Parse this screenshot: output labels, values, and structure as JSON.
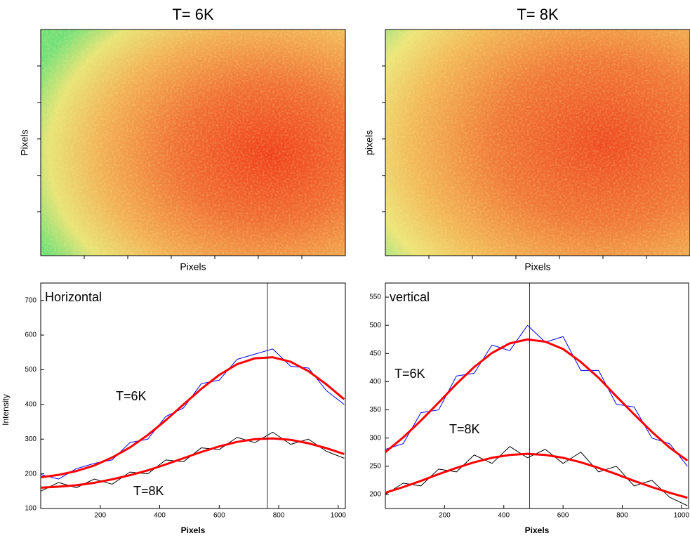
{
  "chart_data": [
    {
      "type": "heatmap",
      "title": "T= 6K",
      "xlabel": "Pixels",
      "ylabel": "Pixels"
    },
    {
      "type": "heatmap",
      "title": "T= 8K",
      "xlabel": "Pixels",
      "ylabel": "pixels"
    },
    {
      "type": "line",
      "annotation": "Horizontal",
      "xlabel": "Pixels",
      "ylabel": "Intensity",
      "x": [
        0,
        60,
        120,
        180,
        240,
        300,
        360,
        420,
        480,
        540,
        600,
        660,
        720,
        780,
        840,
        900,
        960,
        1020
      ],
      "xlim": [
        0,
        1024
      ],
      "xticks": [
        200,
        400,
        600,
        800,
        1000
      ],
      "ylim": [
        100,
        750
      ],
      "yticks": [
        100,
        200,
        300,
        400,
        500,
        600,
        700
      ],
      "vline": 762,
      "series": [
        {
          "name": "T=6K",
          "color": "#0000ff",
          "values": [
            198,
            185,
            215,
            230,
            240,
            290,
            300,
            365,
            390,
            460,
            470,
            530,
            545,
            560,
            510,
            505,
            440,
            400
          ]
        },
        {
          "color": "#ff0000",
          "values": [
            190,
            197,
            208,
            224,
            247,
            276,
            312,
            354,
            400,
            445,
            485,
            516,
            533,
            536,
            523,
            496,
            458,
            415
          ]
        },
        {
          "name": "T=8K",
          "color": "#000000",
          "values": [
            150,
            175,
            160,
            185,
            170,
            205,
            200,
            240,
            235,
            275,
            270,
            305,
            290,
            320,
            285,
            300,
            265,
            245
          ]
        },
        {
          "color": "#ff0000",
          "values": [
            160,
            163,
            167,
            174,
            184,
            196,
            210,
            227,
            245,
            263,
            279,
            292,
            300,
            302,
            298,
            288,
            274,
            257
          ]
        }
      ]
    },
    {
      "type": "line",
      "annotation": "vertical",
      "xlabel": "Pixels",
      "x": [
        0,
        60,
        120,
        180,
        240,
        300,
        360,
        420,
        480,
        540,
        600,
        660,
        720,
        780,
        840,
        900,
        960,
        1020
      ],
      "xlim": [
        0,
        1024
      ],
      "xticks": [
        200,
        400,
        600,
        800,
        1000
      ],
      "ylim": [
        175,
        575
      ],
      "yticks": [
        200,
        250,
        300,
        350,
        400,
        450,
        500,
        550
      ],
      "vline": 487,
      "series": [
        {
          "name": "T=6K",
          "color": "#0000ff",
          "values": [
            280,
            290,
            345,
            350,
            410,
            415,
            465,
            455,
            500,
            470,
            480,
            420,
            420,
            360,
            355,
            300,
            290,
            250
          ]
        },
        {
          "color": "#ff0000",
          "values": [
            275,
            301,
            331,
            363,
            396,
            426,
            451,
            468,
            475,
            471,
            458,
            435,
            407,
            374,
            342,
            311,
            283,
            260
          ]
        },
        {
          "name": "T=8K",
          "color": "#000000",
          "values": [
            200,
            220,
            215,
            245,
            240,
            270,
            255,
            285,
            265,
            280,
            255,
            275,
            240,
            250,
            215,
            225,
            195,
            180
          ]
        },
        {
          "color": "#ff0000",
          "values": [
            203,
            213,
            224,
            236,
            247,
            257,
            265,
            270,
            272,
            270,
            265,
            257,
            247,
            236,
            224,
            213,
            203,
            194
          ]
        }
      ]
    }
  ]
}
